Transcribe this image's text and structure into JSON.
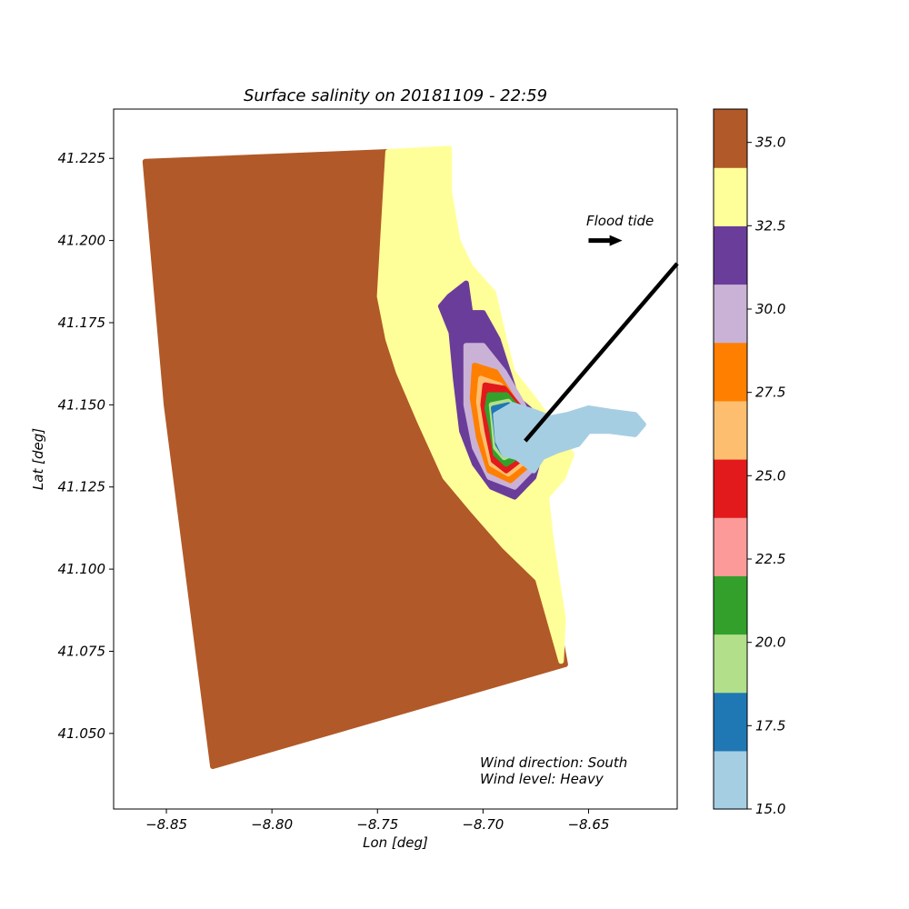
{
  "chart_data": {
    "type": "scatter",
    "title": "Surface salinity on 20181109 - 22:59",
    "xlabel": "Lon [deg]",
    "ylabel": "Lat [deg]",
    "xlim": [
      -8.875,
      -8.608
    ],
    "ylim": [
      41.027,
      41.24
    ],
    "xticks": [
      -8.85,
      -8.8,
      -8.75,
      -8.7,
      -8.65
    ],
    "xtick_labels": [
      "−8.85",
      "−8.80",
      "−8.75",
      "−8.70",
      "−8.65"
    ],
    "yticks": [
      41.05,
      41.075,
      41.1,
      41.125,
      41.15,
      41.175,
      41.2,
      41.225
    ],
    "ytick_labels": [
      "41.050",
      "41.075",
      "41.100",
      "41.125",
      "41.150",
      "41.175",
      "41.200",
      "41.225"
    ],
    "grid": false,
    "colorbar": {
      "min": 15.0,
      "max": 36.0,
      "levels": [
        15.0,
        16.75,
        18.5,
        20.25,
        22.0,
        23.75,
        25.5,
        27.25,
        29.0,
        30.75,
        32.5,
        34.25,
        36.0
      ],
      "colors": [
        "#a6cee3",
        "#1f78b4",
        "#b2df8a",
        "#33a02c",
        "#fb9a99",
        "#e31a1c",
        "#fdbf6f",
        "#ff7f00",
        "#cab2d6",
        "#6a3d9a",
        "#ffff99",
        "#b15928"
      ],
      "ticks": [
        15.0,
        17.5,
        20.0,
        22.5,
        25.0,
        27.5,
        30.0,
        32.5,
        35.0
      ],
      "tick_labels": [
        "15.0",
        "17.5",
        "20.0",
        "22.5",
        "25.0",
        "27.5",
        "30.0",
        "32.5",
        "35.0"
      ]
    },
    "regions": [
      {
        "salinity": 36.0,
        "polygon": [
          [
            -8.86,
            41.224
          ],
          [
            -8.745,
            41.227
          ],
          [
            -8.747,
            41.205
          ],
          [
            -8.749,
            41.183
          ],
          [
            -8.745,
            41.17
          ],
          [
            -8.74,
            41.16
          ],
          [
            -8.73,
            41.145
          ],
          [
            -8.718,
            41.128
          ],
          [
            -8.705,
            41.118
          ],
          [
            -8.69,
            41.107
          ],
          [
            -8.674,
            41.097
          ],
          [
            -8.665,
            41.085
          ],
          [
            -8.661,
            41.071
          ],
          [
            -8.828,
            41.04
          ],
          [
            -8.85,
            41.15
          ]
        ]
      },
      {
        "salinity": 33.5,
        "polygon": [
          [
            -8.745,
            41.227
          ],
          [
            -8.716,
            41.228
          ],
          [
            -8.716,
            41.215
          ],
          [
            -8.712,
            41.2
          ],
          [
            -8.706,
            41.192
          ],
          [
            -8.695,
            41.184
          ],
          [
            -8.69,
            41.17
          ],
          [
            -8.686,
            41.16
          ],
          [
            -8.675,
            41.151
          ],
          [
            -8.665,
            41.142
          ],
          [
            -8.658,
            41.135
          ],
          [
            -8.662,
            41.128
          ],
          [
            -8.67,
            41.122
          ],
          [
            -8.668,
            41.11
          ],
          [
            -8.665,
            41.097
          ],
          [
            -8.662,
            41.085
          ],
          [
            -8.663,
            41.072
          ],
          [
            -8.674,
            41.097
          ],
          [
            -8.69,
            41.107
          ],
          [
            -8.705,
            41.118
          ],
          [
            -8.718,
            41.128
          ],
          [
            -8.73,
            41.145
          ],
          [
            -8.74,
            41.16
          ],
          [
            -8.745,
            41.17
          ],
          [
            -8.749,
            41.183
          ],
          [
            -8.747,
            41.205
          ]
        ]
      },
      {
        "salinity": 31.5,
        "polygon": [
          [
            -8.716,
            41.183
          ],
          [
            -8.708,
            41.187
          ],
          [
            -8.706,
            41.178
          ],
          [
            -8.7,
            41.178
          ],
          [
            -8.693,
            41.17
          ],
          [
            -8.688,
            41.16
          ],
          [
            -8.684,
            41.152
          ],
          [
            -8.675,
            41.147
          ],
          [
            -8.672,
            41.137
          ],
          [
            -8.676,
            41.128
          ],
          [
            -8.685,
            41.122
          ],
          [
            -8.696,
            41.125
          ],
          [
            -8.704,
            41.132
          ],
          [
            -8.71,
            41.142
          ],
          [
            -8.713,
            41.158
          ],
          [
            -8.715,
            41.172
          ],
          [
            -8.72,
            41.18
          ]
        ]
      },
      {
        "salinity": 30.0,
        "polygon": [
          [
            -8.708,
            41.168
          ],
          [
            -8.7,
            41.168
          ],
          [
            -8.69,
            41.16
          ],
          [
            -8.681,
            41.15
          ],
          [
            -8.675,
            41.141
          ],
          [
            -8.676,
            41.131
          ],
          [
            -8.685,
            41.125
          ],
          [
            -8.697,
            41.128
          ],
          [
            -8.704,
            41.137
          ],
          [
            -8.708,
            41.15
          ]
        ]
      },
      {
        "salinity": 28.0,
        "polygon": [
          [
            -8.704,
            41.162
          ],
          [
            -8.694,
            41.16
          ],
          [
            -8.684,
            41.15
          ],
          [
            -8.677,
            41.14
          ],
          [
            -8.678,
            41.132
          ],
          [
            -8.687,
            41.127
          ],
          [
            -8.697,
            41.13
          ],
          [
            -8.702,
            41.14
          ],
          [
            -8.705,
            41.152
          ]
        ]
      },
      {
        "salinity": 26.5,
        "polygon": [
          [
            -8.701,
            41.158
          ],
          [
            -8.692,
            41.156
          ],
          [
            -8.682,
            41.148
          ],
          [
            -8.678,
            41.14
          ],
          [
            -8.68,
            41.133
          ],
          [
            -8.688,
            41.129
          ],
          [
            -8.696,
            41.132
          ],
          [
            -8.7,
            41.142
          ],
          [
            -8.702,
            41.151
          ]
        ]
      },
      {
        "salinity": 24.5,
        "polygon": [
          [
            -8.699,
            41.156
          ],
          [
            -8.69,
            41.155
          ],
          [
            -8.681,
            41.148
          ],
          [
            -8.679,
            41.14
          ],
          [
            -8.681,
            41.134
          ],
          [
            -8.689,
            41.13
          ],
          [
            -8.695,
            41.133
          ],
          [
            -8.698,
            41.142
          ],
          [
            -8.7,
            41.15
          ]
        ]
      },
      {
        "salinity": 21.0,
        "polygon": [
          [
            -8.697,
            41.153
          ],
          [
            -8.689,
            41.153
          ],
          [
            -8.681,
            41.147
          ],
          [
            -8.68,
            41.14
          ],
          [
            -8.682,
            41.135
          ],
          [
            -8.689,
            41.132
          ],
          [
            -8.694,
            41.135
          ],
          [
            -8.696,
            41.143
          ],
          [
            -8.698,
            41.149
          ]
        ]
      },
      {
        "salinity": 19.5,
        "polygon": [
          [
            -8.696,
            41.15
          ],
          [
            -8.688,
            41.151
          ],
          [
            -8.681,
            41.146
          ],
          [
            -8.68,
            41.14
          ],
          [
            -8.683,
            41.136
          ],
          [
            -8.69,
            41.134
          ],
          [
            -8.694,
            41.137
          ],
          [
            -8.695,
            41.144
          ]
        ]
      },
      {
        "salinity": 17.5,
        "polygon": [
          [
            -8.695,
            41.149
          ],
          [
            -8.688,
            41.15
          ],
          [
            -8.681,
            41.145
          ],
          [
            -8.681,
            41.14
          ],
          [
            -8.684,
            41.137
          ],
          [
            -8.69,
            41.135
          ],
          [
            -8.693,
            41.138
          ],
          [
            -8.694,
            41.144
          ]
        ]
      },
      {
        "salinity": 15.0,
        "polygon": [
          [
            -8.694,
            41.147
          ],
          [
            -8.686,
            41.15
          ],
          [
            -8.676,
            41.148
          ],
          [
            -8.668,
            41.146
          ],
          [
            -8.66,
            41.147
          ],
          [
            -8.65,
            41.149
          ],
          [
            -8.64,
            41.148
          ],
          [
            -8.628,
            41.147
          ],
          [
            -8.624,
            41.144
          ],
          [
            -8.628,
            41.141
          ],
          [
            -8.64,
            41.142
          ],
          [
            -8.65,
            41.142
          ],
          [
            -8.655,
            41.138
          ],
          [
            -8.665,
            41.136
          ],
          [
            -8.672,
            41.134
          ],
          [
            -8.676,
            41.13
          ],
          [
            -8.684,
            41.134
          ],
          [
            -8.69,
            41.135
          ],
          [
            -8.693,
            41.139
          ]
        ]
      }
    ],
    "annotations": [
      {
        "text": "Flood tide",
        "x": -8.65,
        "y": 41.205
      },
      {
        "text": "Wind direction: South",
        "x": -8.7,
        "y": 41.041
      },
      {
        "text": "Wind level: Heavy",
        "x": -8.7,
        "y": 41.036
      }
    ],
    "flood_arrow": {
      "x": [
        -8.65,
        -8.634
      ],
      "y": [
        41.2,
        41.2
      ]
    },
    "wind_line": {
      "x": [
        -8.68,
        -8.608
      ],
      "y": [
        41.139,
        41.193
      ]
    }
  }
}
